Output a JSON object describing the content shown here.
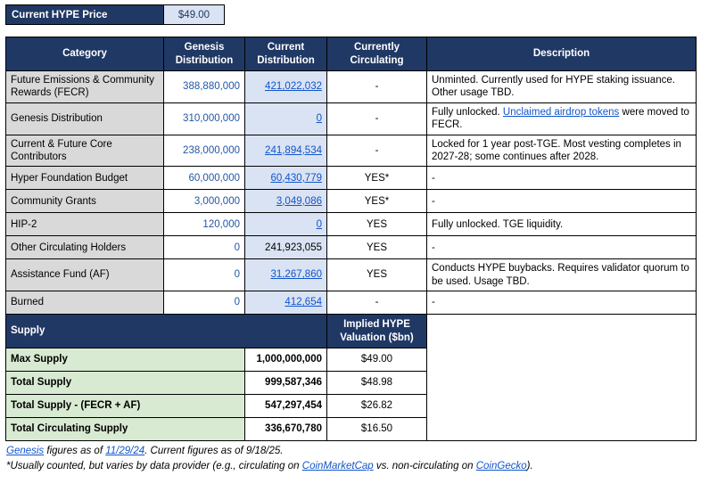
{
  "price_box": {
    "label": "Current HYPE Price",
    "value": "$49.00"
  },
  "colors": {
    "header_navy": "#203864",
    "light_blue": "#dae3f3",
    "category_gray": "#d9d9d9",
    "supply_green": "#d9ead3",
    "link_blue": "#1155cc",
    "number_blue": "#2456a4"
  },
  "table": {
    "headers": [
      "Category",
      "Genesis Distribution",
      "Current Distribution",
      "Currently Circulating",
      "Description"
    ],
    "rows": [
      {
        "category": "Future Emissions & Community Rewards (FECR)",
        "genesis": "388,880,000",
        "current": "421,022,032",
        "current_link": true,
        "circulating": "-",
        "desc": [
          {
            "t": "Unminted. Currently used for HYPE staking issuance. Other usage TBD."
          }
        ]
      },
      {
        "category": "Genesis Distribution",
        "genesis": "310,000,000",
        "current": "0",
        "current_link": true,
        "circulating": "-",
        "desc": [
          {
            "t": "Fully unlocked. "
          },
          {
            "t": "Unclaimed airdrop tokens",
            "link": true
          },
          {
            "t": " were moved to FECR."
          }
        ]
      },
      {
        "category": "Current & Future Core Contributors",
        "genesis": "238,000,000",
        "current": "241,894,534",
        "current_link": true,
        "circulating": "-",
        "desc": [
          {
            "t": "Locked for 1 year post-TGE. Most vesting completes in 2027-28; some continues after 2028."
          }
        ]
      },
      {
        "category": "Hyper Foundation Budget",
        "genesis": "60,000,000",
        "current": "60,430,779",
        "current_link": true,
        "circulating": "YES*",
        "desc": [
          {
            "t": "-"
          }
        ]
      },
      {
        "category": "Community Grants",
        "genesis": "3,000,000",
        "current": "3,049,086",
        "current_link": true,
        "circulating": "YES*",
        "desc": [
          {
            "t": "-"
          }
        ]
      },
      {
        "category": "HIP-2",
        "genesis": "120,000",
        "current": "0",
        "current_link": true,
        "circulating": "YES",
        "desc": [
          {
            "t": "Fully unlocked. TGE liquidity."
          }
        ]
      },
      {
        "category": "Other Circulating Holders",
        "genesis": "0",
        "current": "241,923,055",
        "current_link": false,
        "circulating": "YES",
        "desc": [
          {
            "t": "-"
          }
        ]
      },
      {
        "category": "Assistance Fund (AF)",
        "genesis": "0",
        "current": "31,267,860",
        "current_link": true,
        "circulating": "YES",
        "desc": [
          {
            "t": "Conducts HYPE buybacks. Requires validator quorum to be used. Usage TBD."
          }
        ]
      },
      {
        "category": "Burned",
        "genesis": "0",
        "current": "412,654",
        "current_link": true,
        "circulating": "-",
        "desc": [
          {
            "t": "-"
          }
        ]
      }
    ]
  },
  "supply": {
    "title": "Supply",
    "valuation_header": "Implied HYPE Valuation ($bn)",
    "rows": [
      {
        "label": "Max Supply",
        "value": "1,000,000,000",
        "valuation": "$49.00"
      },
      {
        "label": "Total Supply",
        "value": "999,587,346",
        "valuation": "$48.98"
      },
      {
        "label": "Total Supply - (FECR + AF)",
        "value": "547,297,454",
        "valuation": "$26.82"
      },
      {
        "label": "Total Circulating Supply",
        "value": "336,670,780",
        "valuation": "$16.50"
      }
    ]
  },
  "footnotes": [
    {
      "segments": [
        {
          "t": "Genesis",
          "link": true
        },
        {
          "t": " figures as of "
        },
        {
          "t": "11/29/24",
          "link": true
        },
        {
          "t": ". Current figures as of 9/18/25."
        }
      ]
    },
    {
      "segments": [
        {
          "t": "*Usually counted, but varies by data provider (e.g., circulating on "
        },
        {
          "t": "CoinMarketCap",
          "link": true
        },
        {
          "t": " vs. non-circulating on "
        },
        {
          "t": "CoinGecko",
          "link": true
        },
        {
          "t": ")."
        }
      ]
    }
  ]
}
